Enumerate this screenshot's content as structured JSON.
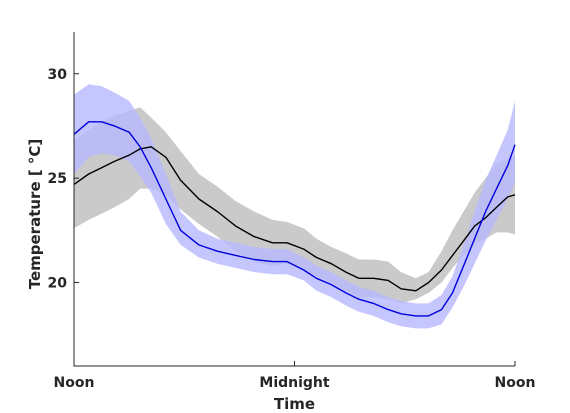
{
  "chart_data": {
    "type": "line",
    "title": "",
    "xlabel": "Time",
    "ylabel": "Temperature [ °C]",
    "xlim": [
      0,
      24
    ],
    "ylim": [
      16,
      32
    ],
    "grid": false,
    "legend": "none",
    "x_ticks": [
      {
        "value": 0,
        "label": "Noon"
      },
      {
        "value": 12,
        "label": "Midnight"
      },
      {
        "value": 24,
        "label": "Noon"
      }
    ],
    "y_ticks": [
      {
        "value": 20,
        "label": "20"
      },
      {
        "value": 25,
        "label": "25"
      },
      {
        "value": 30,
        "label": "30"
      }
    ],
    "x": [
      0,
      0.8,
      1.5,
      2.2,
      3,
      3.6,
      4.2,
      5,
      5.8,
      6.8,
      7.8,
      8.8,
      9.8,
      10.8,
      11.6,
      12.5,
      13.2,
      14,
      14.8,
      15.5,
      16.3,
      17.1,
      17.8,
      18.6,
      19.3,
      20,
      20.6,
      21.2,
      21.8,
      22.4,
      23,
      23.6,
      24
    ],
    "series": [
      {
        "color": "#000000",
        "band_color": "#bdbdbd",
        "mean": [
          24.7,
          25.2,
          25.5,
          25.8,
          26.1,
          26.4,
          26.5,
          26.0,
          24.9,
          24.0,
          23.4,
          22.7,
          22.2,
          21.9,
          21.9,
          21.6,
          21.2,
          20.9,
          20.5,
          20.2,
          20.2,
          20.1,
          19.7,
          19.6,
          20.0,
          20.6,
          21.3,
          22.0,
          22.7,
          23.1,
          23.6,
          24.1,
          24.2
        ],
        "lower": [
          22.6,
          23.0,
          23.3,
          23.6,
          24.0,
          24.5,
          24.5,
          24.2,
          23.5,
          22.8,
          22.2,
          21.5,
          21.0,
          20.8,
          20.9,
          20.6,
          20.3,
          20.0,
          19.6,
          19.3,
          19.3,
          19.2,
          19.0,
          19.2,
          19.5,
          20.0,
          20.7,
          21.3,
          21.8,
          22.1,
          22.4,
          22.4,
          22.3
        ],
        "upper": [
          26.8,
          27.3,
          27.7,
          28.0,
          28.2,
          28.4,
          27.9,
          27.2,
          26.3,
          25.2,
          24.6,
          23.9,
          23.4,
          23.0,
          22.9,
          22.6,
          22.1,
          21.7,
          21.4,
          21.1,
          21.1,
          21.0,
          20.5,
          20.2,
          20.5,
          21.5,
          22.5,
          23.4,
          24.3,
          25.0,
          25.7,
          25.9,
          26.1
        ]
      },
      {
        "color": "#0000dd",
        "band_color": "#b8b8ff",
        "mean": [
          27.1,
          27.7,
          27.7,
          27.5,
          27.2,
          26.5,
          25.5,
          24.0,
          22.5,
          21.8,
          21.5,
          21.3,
          21.1,
          21.0,
          21.0,
          20.6,
          20.2,
          19.9,
          19.5,
          19.2,
          19.0,
          18.7,
          18.5,
          18.4,
          18.4,
          18.7,
          19.5,
          20.8,
          22.1,
          23.4,
          24.5,
          25.6,
          26.6
        ],
        "lower": [
          25.2,
          26.0,
          26.2,
          26.1,
          25.8,
          25.1,
          24.3,
          22.8,
          21.8,
          21.2,
          20.9,
          20.7,
          20.5,
          20.4,
          20.4,
          20.1,
          19.6,
          19.3,
          18.9,
          18.6,
          18.4,
          18.1,
          17.9,
          17.8,
          17.8,
          18.0,
          18.8,
          19.8,
          20.9,
          22.0,
          23.0,
          24.0,
          24.8
        ],
        "upper": [
          29.0,
          29.5,
          29.4,
          29.1,
          28.7,
          27.9,
          26.9,
          25.2,
          23.4,
          22.5,
          22.1,
          21.9,
          21.7,
          21.6,
          21.6,
          21.2,
          20.8,
          20.5,
          20.1,
          19.8,
          19.6,
          19.3,
          19.1,
          19.0,
          19.0,
          19.4,
          20.3,
          21.8,
          23.4,
          24.9,
          26.1,
          27.3,
          28.7
        ]
      }
    ]
  }
}
